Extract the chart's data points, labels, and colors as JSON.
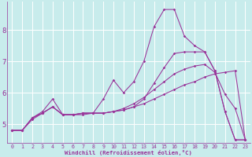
{
  "xlabel": "Windchill (Refroidissement éolien,°C)",
  "background_color": "#c8ecec",
  "grid_color": "#aad4d4",
  "line_color": "#993399",
  "x_ticks": [
    0,
    1,
    2,
    3,
    4,
    5,
    6,
    7,
    8,
    9,
    10,
    11,
    12,
    13,
    14,
    15,
    16,
    17,
    18,
    19,
    20,
    21,
    22,
    23
  ],
  "y_ticks": [
    5,
    6,
    7,
    8
  ],
  "ylim": [
    4.4,
    8.9
  ],
  "xlim": [
    -0.5,
    23.5
  ],
  "series": [
    [
      4.8,
      4.8,
      5.2,
      5.4,
      5.8,
      5.3,
      5.3,
      5.3,
      5.35,
      5.8,
      6.4,
      6.0,
      6.35,
      7.0,
      8.1,
      8.65,
      8.65,
      7.8,
      7.5,
      7.3,
      6.7,
      5.4,
      4.5,
      4.5
    ],
    [
      4.8,
      4.8,
      5.2,
      5.35,
      5.55,
      5.3,
      5.3,
      5.35,
      5.35,
      5.35,
      5.4,
      5.45,
      5.55,
      5.65,
      5.8,
      5.95,
      6.1,
      6.25,
      6.35,
      6.5,
      6.6,
      6.65,
      6.7,
      4.5
    ],
    [
      4.8,
      4.8,
      5.2,
      5.35,
      5.55,
      5.3,
      5.3,
      5.35,
      5.35,
      5.35,
      5.4,
      5.5,
      5.65,
      5.85,
      6.1,
      6.35,
      6.6,
      6.75,
      6.85,
      6.9,
      6.65,
      5.95,
      5.5,
      4.5
    ],
    [
      4.8,
      4.8,
      5.15,
      5.35,
      5.55,
      5.3,
      5.3,
      5.35,
      5.35,
      5.35,
      5.4,
      5.45,
      5.55,
      5.8,
      6.3,
      6.8,
      7.25,
      7.3,
      7.3,
      7.3,
      6.7,
      5.4,
      4.5,
      4.5
    ]
  ]
}
